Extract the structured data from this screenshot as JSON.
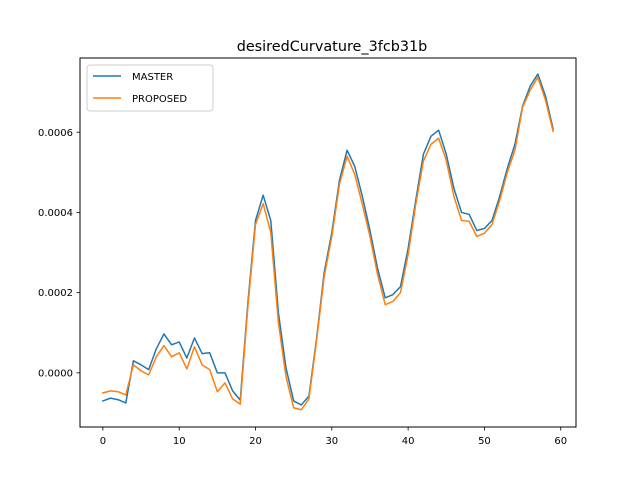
{
  "chart_data": {
    "type": "line",
    "title": "desiredCurvature_3fcb31b",
    "xlabel": "",
    "ylabel": "",
    "xlim": [
      -3,
      62
    ],
    "ylim": [
      -0.000135,
      0.000785
    ],
    "xticks": [
      0,
      10,
      20,
      30,
      40,
      50,
      60
    ],
    "xtick_labels": [
      "0",
      "10",
      "20",
      "30",
      "40",
      "50",
      "60"
    ],
    "yticks": [
      0.0,
      0.0002,
      0.0004,
      0.0006
    ],
    "ytick_labels": [
      "0.0000",
      "0.0002",
      "0.0004",
      "0.0006"
    ],
    "grid": false,
    "legend": "top-left",
    "x": [
      0,
      1,
      2,
      3,
      4,
      5,
      6,
      7,
      8,
      9,
      10,
      11,
      12,
      13,
      14,
      15,
      16,
      17,
      18,
      19,
      20,
      21,
      22,
      23,
      24,
      25,
      26,
      27,
      28,
      29,
      30,
      31,
      32,
      33,
      34,
      35,
      36,
      37,
      38,
      39,
      40,
      41,
      42,
      43,
      44,
      45,
      46,
      47,
      48,
      49,
      50,
      51,
      52,
      53,
      54,
      55,
      56,
      57,
      58,
      59
    ],
    "series": [
      {
        "name": "MASTER",
        "color": "#1f77b4",
        "values": [
          -7e-05,
          -6.3e-05,
          -6.7e-05,
          -7.5e-05,
          3e-05,
          2e-05,
          8e-06,
          6e-05,
          9.7e-05,
          7e-05,
          7.7e-05,
          3.7e-05,
          8.7e-05,
          4.8e-05,
          5e-05,
          0.0,
          0.0,
          -4.5e-05,
          -6.8e-05,
          0.000175,
          0.00038,
          0.000443,
          0.00038,
          0.00015,
          1.2e-05,
          -7e-05,
          -8e-05,
          -5.8e-05,
          8.5e-05,
          0.00025,
          0.00035,
          0.00048,
          0.000555,
          0.000515,
          0.00044,
          0.000355,
          0.00026,
          0.000187,
          0.000195,
          0.000215,
          0.00031,
          0.00043,
          0.000545,
          0.00059,
          0.000605,
          0.000545,
          0.00046,
          0.0004,
          0.000395,
          0.000355,
          0.00036,
          0.00038,
          0.00044,
          0.00051,
          0.00057,
          0.000665,
          0.000715,
          0.000745,
          0.00069,
          0.000608
        ]
      },
      {
        "name": "PROPOSED",
        "color": "#ff7f0e",
        "values": [
          -5e-05,
          -4.5e-05,
          -4.7e-05,
          -5.5e-05,
          2e-05,
          5e-06,
          -5e-06,
          4e-05,
          6.8e-05,
          4e-05,
          5e-05,
          1e-05,
          6.5e-05,
          2e-05,
          8e-06,
          -4.7e-05,
          -2.5e-05,
          -6.5e-05,
          -7.8e-05,
          0.000165,
          0.00037,
          0.000422,
          0.00035,
          0.000125,
          -1e-05,
          -8.7e-05,
          -9.2e-05,
          -6.5e-05,
          8e-05,
          0.00024,
          0.00034,
          0.00047,
          0.00054,
          0.000495,
          0.00042,
          0.00034,
          0.000245,
          0.00017,
          0.000178,
          0.0002,
          0.000295,
          0.00042,
          0.000528,
          0.00057,
          0.000585,
          0.00053,
          0.00044,
          0.00038,
          0.000378,
          0.00034,
          0.000348,
          0.00037,
          0.00043,
          0.0005,
          0.000555,
          0.000662,
          0.000705,
          0.000737,
          0.00068,
          0.000602
        ]
      }
    ]
  }
}
